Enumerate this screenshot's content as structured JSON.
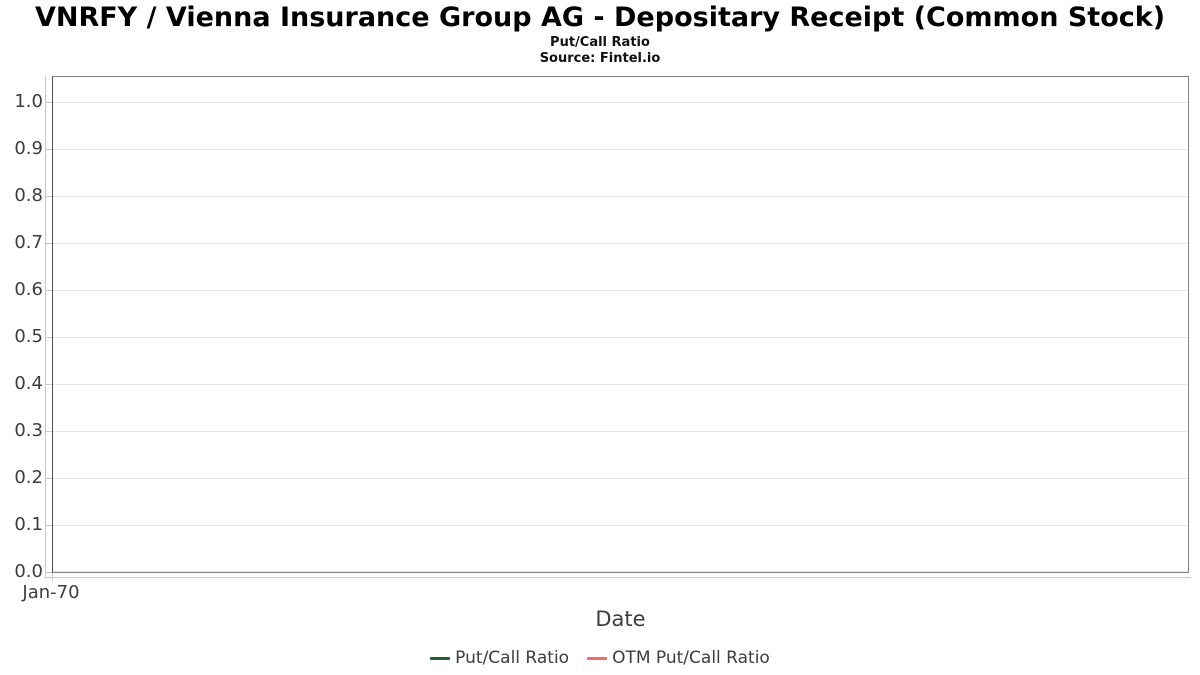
{
  "header": {
    "title": "VNRFY / Vienna Insurance Group AG - Depositary Receipt (Common Stock)",
    "subtitle": "Put/Call Ratio",
    "source": "Source: Fintel.io"
  },
  "chart_data": {
    "type": "line",
    "title": "VNRFY / Vienna Insurance Group AG - Depositary Receipt (Common Stock)",
    "subtitle": "Put/Call Ratio",
    "source": "Source: Fintel.io",
    "xlabel": "Date",
    "ylabel": "",
    "ylim": [
      0.0,
      1.0
    ],
    "y_ticks": [
      "0.0",
      "0.1",
      "0.2",
      "0.3",
      "0.4",
      "0.5",
      "0.6",
      "0.7",
      "0.8",
      "0.9",
      "1.0"
    ],
    "x_ticks": [
      "Jan-70"
    ],
    "grid": "horizontal",
    "legend_position": "bottom-center",
    "series": [
      {
        "name": "Put/Call Ratio",
        "color": "#265c35",
        "x": [],
        "values": []
      },
      {
        "name": "OTM Put/Call Ratio",
        "color": "#fa6a60",
        "x": [],
        "values": []
      }
    ]
  }
}
